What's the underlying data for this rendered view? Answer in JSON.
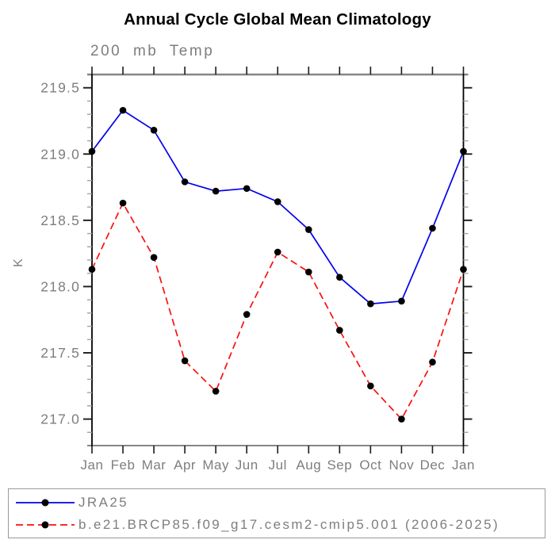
{
  "chart_data": {
    "type": "line",
    "title": "Annual Cycle Global Mean Climatology",
    "subtitle": "200 mb Temp",
    "ylabel": "K",
    "xlabel": "",
    "categories": [
      "Jan",
      "Feb",
      "Mar",
      "Apr",
      "May",
      "Jun",
      "Jul",
      "Aug",
      "Sep",
      "Oct",
      "Nov",
      "Dec",
      "Jan"
    ],
    "y_major_ticks": [
      217.0,
      217.5,
      218.0,
      218.5,
      219.0,
      219.5
    ],
    "y_minor_step": 0.1,
    "ylim": [
      216.8,
      219.6
    ],
    "grid": false,
    "legend_position": "bottom",
    "series": [
      {
        "name": "JRA25",
        "color": "#0000ee",
        "line_style": "solid",
        "marker": "black-dot",
        "values": [
          219.02,
          219.33,
          219.18,
          218.79,
          218.72,
          218.74,
          218.64,
          218.43,
          218.07,
          217.87,
          217.89,
          218.44,
          219.02
        ]
      },
      {
        "name": "b.e21.BRCP85.f09_g17.cesm2-cmip5.001 (2006-2025)",
        "color": "#fb0f0f",
        "line_style": "dashed",
        "marker": "black-dot",
        "values": [
          218.13,
          218.63,
          218.22,
          217.44,
          217.21,
          217.79,
          218.26,
          218.11,
          217.67,
          217.25,
          217.0,
          217.43,
          218.13
        ]
      }
    ]
  },
  "colors": {
    "title_text": "#000000",
    "muted_text": "#7e7e7e",
    "axis_line": "#000000",
    "frame_top_bottom": "#868686",
    "major_tick": "#1a1a1a",
    "minor_tick": "#a2a2a2",
    "marker": "#000000",
    "legend_border": "#9a9a9a",
    "background": "#ffffff"
  }
}
